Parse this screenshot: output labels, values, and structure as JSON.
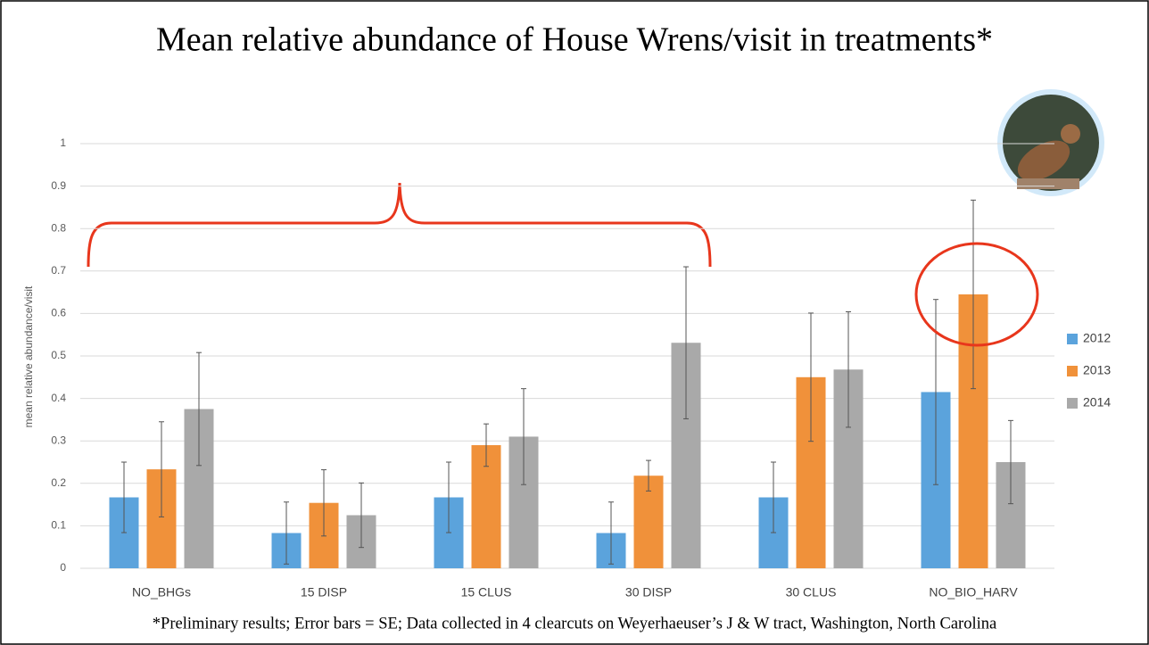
{
  "chart_data": {
    "type": "bar",
    "title": "Mean relative abundance of House Wrens/visit in treatments*",
    "y_label": "mean relative abundance/visit",
    "footnote": "*Preliminary results; Error bars = SE; Data collected in 4 clearcuts on Weyerhaeuser’s J & W tract, Washington, North Carolina",
    "categories": [
      "NO_BHGs",
      "15 DISP",
      "15 CLUS",
      "30 DISP",
      "30 CLUS",
      "NO_BIO_HARV"
    ],
    "series": [
      {
        "name": "2012",
        "color": "#5ba3dc",
        "values": [
          0.167,
          0.083,
          0.167,
          0.083,
          0.167,
          0.415
        ],
        "errors": [
          0.083,
          0.073,
          0.083,
          0.073,
          0.083,
          0.218
        ]
      },
      {
        "name": "2013",
        "color": "#f0913a",
        "values": [
          0.233,
          0.154,
          0.29,
          0.218,
          0.45,
          0.645
        ],
        "errors": [
          0.112,
          0.078,
          0.05,
          0.036,
          0.151,
          0.222
        ]
      },
      {
        "name": "2014",
        "color": "#a9a9a9",
        "values": [
          0.375,
          0.125,
          0.31,
          0.531,
          0.468,
          0.25
        ],
        "errors": [
          0.133,
          0.076,
          0.113,
          0.179,
          0.136,
          0.098
        ]
      }
    ],
    "ylim": [
      0,
      1
    ],
    "yticks": [
      0,
      0.1,
      0.2,
      0.3,
      0.4,
      0.5,
      0.6,
      0.7,
      0.8,
      0.9,
      1
    ],
    "grid": true,
    "legend": "right"
  }
}
